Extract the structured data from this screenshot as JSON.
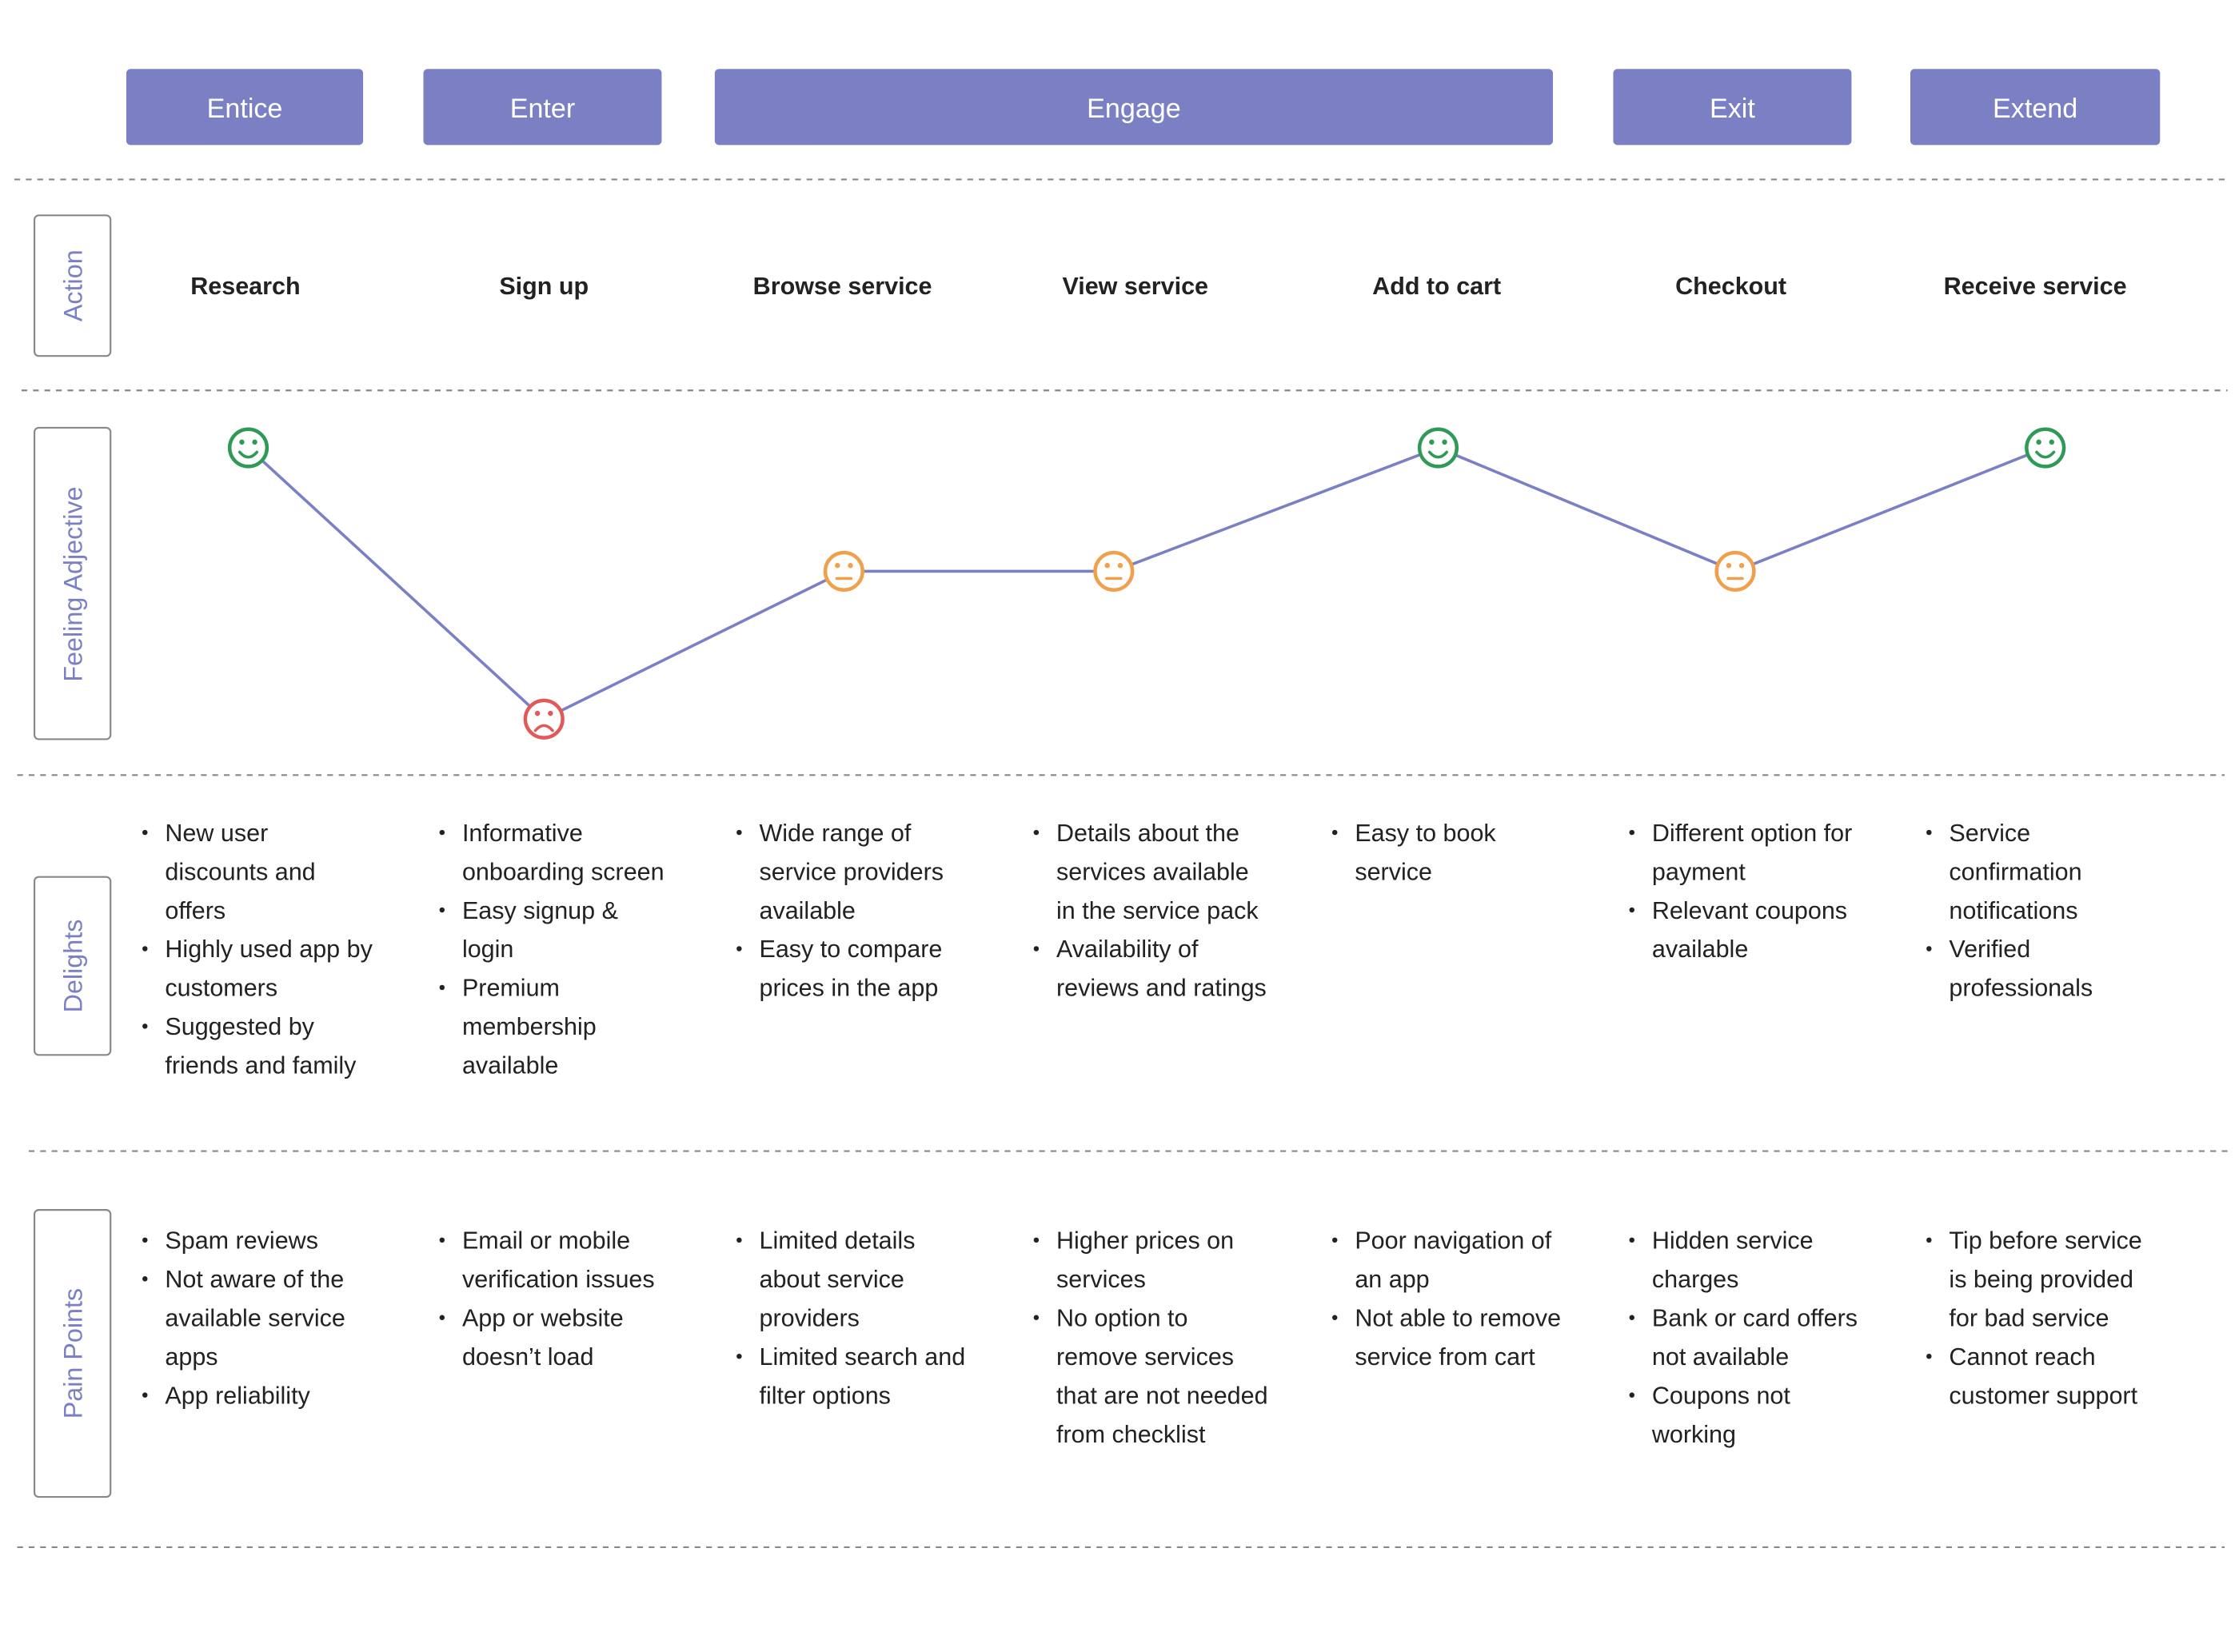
{
  "phases": [
    "Entice",
    "Enter",
    "Engage",
    "Exit",
    "Extend"
  ],
  "row_labels": {
    "action": "Action",
    "feeling": "Feeling Adjective",
    "delights": "Delights",
    "pain_points": "Pain Points"
  },
  "columns": [
    {
      "action": "Research",
      "feeling": "happy",
      "delights": [
        "New user discounts and offers",
        "Highly used app by customers",
        "Suggested by friends and family"
      ],
      "pain_points": [
        "Spam reviews",
        "Not aware of the available service apps",
        "App reliability"
      ]
    },
    {
      "action": "Sign up",
      "feeling": "sad",
      "delights": [
        "Informative onboarding screen",
        "Easy signup & login",
        "Premium membership available"
      ],
      "pain_points": [
        "Email or mobile verification issues",
        "App or website doesn’t load"
      ]
    },
    {
      "action": "Browse service",
      "feeling": "neutral",
      "delights": [
        "Wide range of service providers available",
        "Easy to compare prices in the app"
      ],
      "pain_points": [
        "Limited details about service providers",
        "Limited search and filter options"
      ]
    },
    {
      "action": "View service",
      "feeling": "neutral",
      "delights": [
        "Details about the services available in the service pack",
        "Availability of reviews and ratings"
      ],
      "pain_points": [
        "Higher prices on services",
        "No option to remove services that are not needed from checklist"
      ]
    },
    {
      "action": "Add to cart",
      "feeling": "happy",
      "delights": [
        "Easy to book service"
      ],
      "pain_points": [
        "Poor navigation of an app",
        "Not able to remove service from cart"
      ]
    },
    {
      "action": "Checkout",
      "feeling": "neutral",
      "delights": [
        "Different option for payment",
        "Relevant coupons available"
      ],
      "pain_points": [
        "Hidden service charges",
        "Bank or card offers not available",
        "Coupons not working"
      ]
    },
    {
      "action": "Receive service",
      "feeling": "happy",
      "delights": [
        "Service confirmation notifications",
        "Verified professionals"
      ],
      "pain_points": [
        "Tip before service is being provided for bad service",
        "Cannot reach customer support"
      ]
    }
  ]
}
